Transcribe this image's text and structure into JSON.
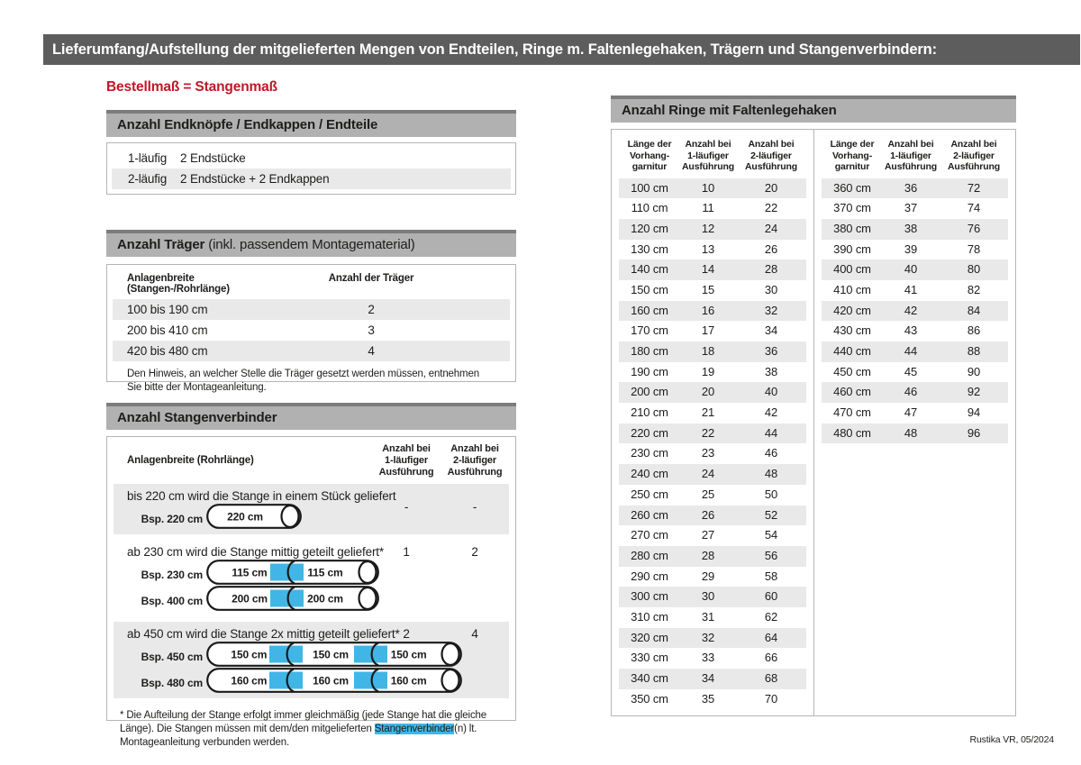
{
  "page": {
    "title": "Lieferumfang/Aufstellung der mitgelieferten Mengen von Endteilen, Ringe m. Faltenlegehaken, Trägern und Stangenverbindern:",
    "subtitle": "Bestellmaß = Stangenmaß",
    "footer": "Rustika VR, 05/2024"
  },
  "colors": {
    "titlebar_gray": "#5e5d5d",
    "section_bar_gray": "#b2b1b1",
    "stripe_gray": "#e9e9e9",
    "accent_red": "#c31626",
    "connector_blue": "#41b6e6"
  },
  "end_pieces": {
    "header": "Anzahl Endknöpfe / Endkappen / Endteile",
    "rows": [
      {
        "label": "1-läufig",
        "value": "2 Endstücke"
      },
      {
        "label": "2-läufig",
        "value": "2 Endstücke + 2 Endkappen"
      }
    ]
  },
  "traeger": {
    "header_bold": "Anzahl Träger",
    "header_normal": " (inkl. passendem Montagematerial)",
    "col1": "Anlagenbreite (Stangen-/Rohrlänge)",
    "col2": "Anzahl der Träger",
    "rows": [
      {
        "range": "100 bis 190 cm",
        "count": "2"
      },
      {
        "range": "200 bis 410 cm",
        "count": "3"
      },
      {
        "range": "420 bis 480 cm",
        "count": "4"
      }
    ],
    "note": "Den Hinweis, an welcher Stelle die Träger gesetzt werden müssen, entnehmen Sie bitte der Montageanleitung."
  },
  "verbinder": {
    "header": "Anzahl Stangenverbinder",
    "col1": "Anlagenbreite (Rohrlänge)",
    "col2_lines": [
      "Anzahl bei",
      "1-läufiger",
      "Ausführung"
    ],
    "col3_lines": [
      "Anzahl bei",
      "2-läufiger",
      "Ausführung"
    ],
    "blocks": [
      {
        "text": "bis 220 cm wird die Stange in einem Stück geliefert",
        "val1": "-",
        "val2": "-",
        "shaded": true,
        "examples": [
          {
            "label": "Bsp. 220 cm",
            "segments": [
              "220 cm"
            ]
          }
        ]
      },
      {
        "text": "ab 230 cm wird die Stange mittig geteilt geliefert*",
        "val1": "1",
        "val2": "2",
        "shaded": false,
        "examples": [
          {
            "label": "Bsp. 230 cm",
            "segments": [
              "115 cm",
              "115 cm"
            ]
          },
          {
            "label": "Bsp. 400 cm",
            "segments": [
              "200 cm",
              "200 cm"
            ]
          }
        ]
      },
      {
        "text": "ab 450 cm wird die Stange 2x mittig geteilt geliefert*",
        "val1": "2",
        "val2": "4",
        "shaded": true,
        "examples": [
          {
            "label": "Bsp. 450 cm",
            "segments": [
              "150 cm",
              "150 cm",
              "150 cm"
            ]
          },
          {
            "label": "Bsp. 480 cm",
            "segments": [
              "160 cm",
              "160 cm",
              "160 cm"
            ]
          }
        ]
      }
    ],
    "footnote_pre": "* Die Aufteilung der Stange erfolgt immer gleichmäßig (jede Stange hat die gleiche Länge). Die Stangen müssen mit dem/den mitgelieferten ",
    "footnote_highlight": "Stangenverbinder",
    "footnote_post": "(n) lt. Montageanleitung verbunden werden."
  },
  "ringe": {
    "header": "Anzahl Ringe mit Faltenlegehaken",
    "col_headers": [
      [
        "Länge der",
        "Vorhang-",
        "garnitur"
      ],
      [
        "Anzahl bei",
        "1-läufiger",
        "Ausführung"
      ],
      [
        "Anzahl bei",
        "2-läufiger",
        "Ausführung"
      ]
    ],
    "table_left": [
      [
        "100 cm",
        "10",
        "20"
      ],
      [
        "110 cm",
        "11",
        "22"
      ],
      [
        "120 cm",
        "12",
        "24"
      ],
      [
        "130 cm",
        "13",
        "26"
      ],
      [
        "140 cm",
        "14",
        "28"
      ],
      [
        "150 cm",
        "15",
        "30"
      ],
      [
        "160 cm",
        "16",
        "32"
      ],
      [
        "170 cm",
        "17",
        "34"
      ],
      [
        "180 cm",
        "18",
        "36"
      ],
      [
        "190 cm",
        "19",
        "38"
      ],
      [
        "200 cm",
        "20",
        "40"
      ],
      [
        "210 cm",
        "21",
        "42"
      ],
      [
        "220 cm",
        "22",
        "44"
      ],
      [
        "230 cm",
        "23",
        "46"
      ],
      [
        "240 cm",
        "24",
        "48"
      ],
      [
        "250 cm",
        "25",
        "50"
      ],
      [
        "260 cm",
        "26",
        "52"
      ],
      [
        "270 cm",
        "27",
        "54"
      ],
      [
        "280 cm",
        "28",
        "56"
      ],
      [
        "290 cm",
        "29",
        "58"
      ],
      [
        "300 cm",
        "30",
        "60"
      ],
      [
        "310 cm",
        "31",
        "62"
      ],
      [
        "320 cm",
        "32",
        "64"
      ],
      [
        "330 cm",
        "33",
        "66"
      ],
      [
        "340 cm",
        "34",
        "68"
      ],
      [
        "350 cm",
        "35",
        "70"
      ]
    ],
    "table_right": [
      [
        "360 cm",
        "36",
        "72"
      ],
      [
        "370 cm",
        "37",
        "74"
      ],
      [
        "380 cm",
        "38",
        "76"
      ],
      [
        "390 cm",
        "39",
        "78"
      ],
      [
        "400 cm",
        "40",
        "80"
      ],
      [
        "410 cm",
        "41",
        "82"
      ],
      [
        "420 cm",
        "42",
        "84"
      ],
      [
        "430 cm",
        "43",
        "86"
      ],
      [
        "440 cm",
        "44",
        "88"
      ],
      [
        "450 cm",
        "45",
        "90"
      ],
      [
        "460 cm",
        "46",
        "92"
      ],
      [
        "470 cm",
        "47",
        "94"
      ],
      [
        "480 cm",
        "48",
        "96"
      ]
    ]
  }
}
